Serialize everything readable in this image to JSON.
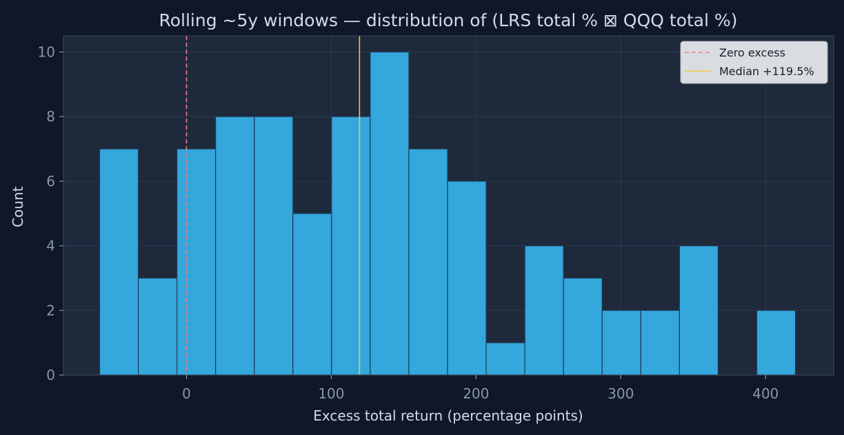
{
  "chart_data": {
    "type": "bar",
    "title": "Rolling ~5y windows — distribution of (LRS total % ⊠ QQQ total %)",
    "xlabel": "Excess total return (percentage points)",
    "ylabel": "Count",
    "xlim": [
      -85,
      447
    ],
    "ylim": [
      0,
      10.5
    ],
    "xticks": [
      0,
      100,
      200,
      300,
      400
    ],
    "yticks": [
      0,
      2,
      4,
      6,
      8,
      10
    ],
    "grid": true,
    "bin_edges": [
      -60,
      -33.3,
      -6.6,
      20.1,
      46.8,
      73.5,
      100.2,
      126.9,
      153.6,
      180.3,
      207,
      233.7,
      260.4,
      287.1,
      313.8,
      340.5,
      367.2,
      393.9,
      420.6
    ],
    "counts": [
      7,
      3,
      7,
      8,
      8,
      5,
      8,
      10,
      7,
      6,
      1,
      4,
      3,
      2,
      2,
      4,
      0,
      2
    ],
    "reference_lines": [
      {
        "name": "Zero excess",
        "x": 0,
        "color": "#f07c86",
        "style": "dashed"
      },
      {
        "name": "Median +119.5%",
        "x": 119.5,
        "color": "#f5c542",
        "style": "solid"
      }
    ],
    "legend_position": "top-right",
    "colors": {
      "bar": "#34a7dd",
      "background": "#0f172a",
      "plot_background": "#1e293b"
    }
  }
}
